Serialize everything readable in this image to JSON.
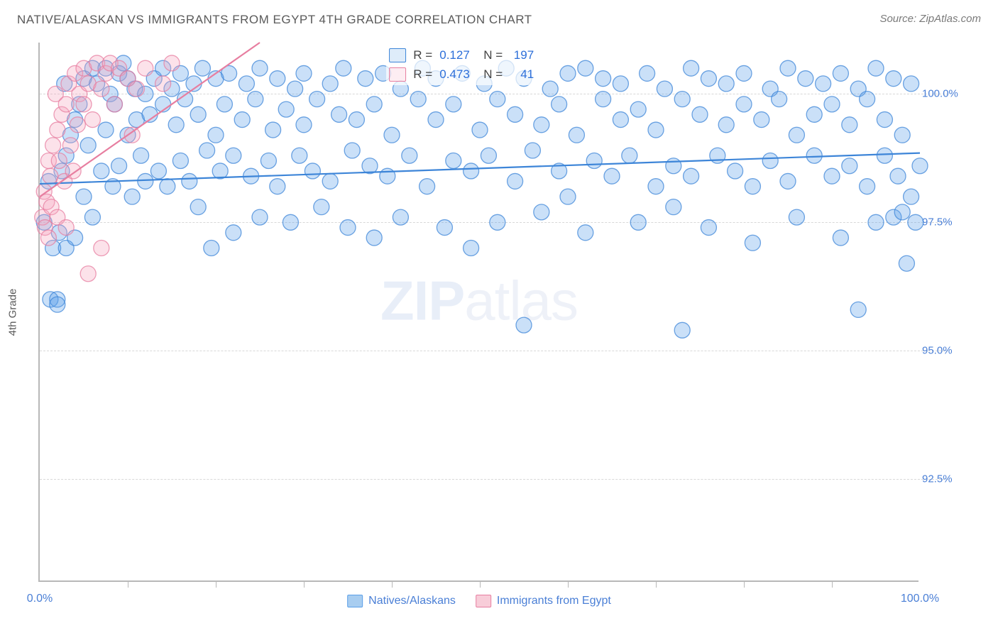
{
  "header": {
    "title": "NATIVE/ALASKAN VS IMMIGRANTS FROM EGYPT 4TH GRADE CORRELATION CHART",
    "source": "Source: ZipAtlas.com"
  },
  "chart": {
    "type": "scatter",
    "ylabel": "4th Grade",
    "watermark_bold": "ZIP",
    "watermark_rest": "atlas",
    "xlim": [
      0,
      100
    ],
    "ylim": [
      90.5,
      101.0
    ],
    "yticks": [
      {
        "v": 92.5,
        "label": "92.5%"
      },
      {
        "v": 95.0,
        "label": "95.0%"
      },
      {
        "v": 97.5,
        "label": "97.5%"
      },
      {
        "v": 100.0,
        "label": "100.0%"
      }
    ],
    "xticks_minor": [
      10,
      20,
      30,
      40,
      50,
      60,
      70,
      80,
      90
    ],
    "xticks_labeled": [
      {
        "v": 0,
        "label": "0.0%"
      },
      {
        "v": 100,
        "label": "100.0%"
      }
    ],
    "marker_radius": 11,
    "marker_fill_opacity": 0.32,
    "marker_stroke_opacity": 0.75,
    "marker_stroke_width": 1.3,
    "line_width": 2.2,
    "grid_color": "#d8d8d8",
    "axis_color": "#b8b8b8",
    "background_color": "#ffffff",
    "text_color_axis": "#4a7fd6",
    "series": [
      {
        "name": "Natives/Alaskans",
        "color": "#5a9fe8",
        "stroke": "#3d85d8",
        "R": "0.127",
        "N": "197",
        "trend": {
          "x1": 0,
          "y1": 98.25,
          "x2": 100,
          "y2": 98.85
        },
        "points": [
          [
            0.5,
            97.5
          ],
          [
            1,
            98.3
          ],
          [
            1.2,
            96.0
          ],
          [
            1.5,
            97.0
          ],
          [
            2,
            96.0
          ],
          [
            2,
            95.9
          ],
          [
            2.2,
            97.3
          ],
          [
            2.5,
            98.5
          ],
          [
            2.8,
            100.2
          ],
          [
            3,
            97.0
          ],
          [
            3,
            98.8
          ],
          [
            3.5,
            99.2
          ],
          [
            4,
            99.5
          ],
          [
            4,
            97.2
          ],
          [
            4.5,
            99.8
          ],
          [
            5,
            100.3
          ],
          [
            5,
            98.0
          ],
          [
            5.5,
            99.0
          ],
          [
            6,
            100.5
          ],
          [
            6,
            97.6
          ],
          [
            6.5,
            100.2
          ],
          [
            7,
            98.5
          ],
          [
            7.5,
            99.3
          ],
          [
            7.5,
            100.5
          ],
          [
            8,
            100.0
          ],
          [
            8.3,
            98.2
          ],
          [
            8.5,
            99.8
          ],
          [
            9,
            100.4
          ],
          [
            9,
            98.6
          ],
          [
            9.5,
            100.6
          ],
          [
            10,
            99.2
          ],
          [
            10,
            100.3
          ],
          [
            10.5,
            98.0
          ],
          [
            10.8,
            100.1
          ],
          [
            11,
            99.5
          ],
          [
            11.5,
            98.8
          ],
          [
            12,
            100.0
          ],
          [
            12,
            98.3
          ],
          [
            12.5,
            99.6
          ],
          [
            13,
            100.3
          ],
          [
            13.5,
            98.5
          ],
          [
            14,
            99.8
          ],
          [
            14,
            100.5
          ],
          [
            14.5,
            98.2
          ],
          [
            15,
            100.1
          ],
          [
            15.5,
            99.4
          ],
          [
            16,
            98.7
          ],
          [
            16,
            100.4
          ],
          [
            16.5,
            99.9
          ],
          [
            17,
            98.3
          ],
          [
            17.5,
            100.2
          ],
          [
            18,
            97.8
          ],
          [
            18,
            99.6
          ],
          [
            18.5,
            100.5
          ],
          [
            19,
            98.9
          ],
          [
            19.5,
            97.0
          ],
          [
            20,
            100.3
          ],
          [
            20,
            99.2
          ],
          [
            20.5,
            98.5
          ],
          [
            21,
            99.8
          ],
          [
            21.5,
            100.4
          ],
          [
            22,
            97.3
          ],
          [
            22,
            98.8
          ],
          [
            23,
            99.5
          ],
          [
            23.5,
            100.2
          ],
          [
            24,
            98.4
          ],
          [
            24.5,
            99.9
          ],
          [
            25,
            97.6
          ],
          [
            25,
            100.5
          ],
          [
            26,
            98.7
          ],
          [
            26.5,
            99.3
          ],
          [
            27,
            100.3
          ],
          [
            27,
            98.2
          ],
          [
            28,
            99.7
          ],
          [
            28.5,
            97.5
          ],
          [
            29,
            100.1
          ],
          [
            29.5,
            98.8
          ],
          [
            30,
            99.4
          ],
          [
            30,
            100.4
          ],
          [
            31,
            98.5
          ],
          [
            31.5,
            99.9
          ],
          [
            32,
            97.8
          ],
          [
            33,
            100.2
          ],
          [
            33,
            98.3
          ],
          [
            34,
            99.6
          ],
          [
            34.5,
            100.5
          ],
          [
            35,
            97.4
          ],
          [
            35.5,
            98.9
          ],
          [
            36,
            99.5
          ],
          [
            37,
            100.3
          ],
          [
            37.5,
            98.6
          ],
          [
            38,
            97.2
          ],
          [
            38,
            99.8
          ],
          [
            39,
            100.4
          ],
          [
            39.5,
            98.4
          ],
          [
            40,
            99.2
          ],
          [
            41,
            100.1
          ],
          [
            41,
            97.6
          ],
          [
            42,
            98.8
          ],
          [
            43,
            99.9
          ],
          [
            43.5,
            100.5
          ],
          [
            44,
            98.2
          ],
          [
            45,
            99.5
          ],
          [
            45,
            100.3
          ],
          [
            46,
            97.4
          ],
          [
            47,
            98.7
          ],
          [
            47,
            99.8
          ],
          [
            48,
            100.4
          ],
          [
            49,
            97.0
          ],
          [
            49,
            98.5
          ],
          [
            50,
            99.3
          ],
          [
            50.5,
            100.2
          ],
          [
            51,
            98.8
          ],
          [
            52,
            97.5
          ],
          [
            52,
            99.9
          ],
          [
            53,
            100.5
          ],
          [
            54,
            98.3
          ],
          [
            54,
            99.6
          ],
          [
            55,
            95.5
          ],
          [
            55,
            100.3
          ],
          [
            56,
            98.9
          ],
          [
            57,
            97.7
          ],
          [
            57,
            99.4
          ],
          [
            58,
            100.1
          ],
          [
            59,
            98.5
          ],
          [
            59,
            99.8
          ],
          [
            60,
            100.4
          ],
          [
            60,
            98.0
          ],
          [
            61,
            99.2
          ],
          [
            62,
            97.3
          ],
          [
            62,
            100.5
          ],
          [
            63,
            98.7
          ],
          [
            64,
            99.9
          ],
          [
            64,
            100.3
          ],
          [
            65,
            98.4
          ],
          [
            66,
            99.5
          ],
          [
            66,
            100.2
          ],
          [
            67,
            98.8
          ],
          [
            68,
            97.5
          ],
          [
            68,
            99.7
          ],
          [
            69,
            100.4
          ],
          [
            70,
            98.2
          ],
          [
            70,
            99.3
          ],
          [
            71,
            100.1
          ],
          [
            72,
            97.8
          ],
          [
            72,
            98.6
          ],
          [
            73,
            99.9
          ],
          [
            73,
            95.4
          ],
          [
            74,
            100.5
          ],
          [
            74,
            98.4
          ],
          [
            75,
            99.6
          ],
          [
            76,
            100.3
          ],
          [
            76,
            97.4
          ],
          [
            77,
            98.8
          ],
          [
            78,
            99.4
          ],
          [
            78,
            100.2
          ],
          [
            79,
            98.5
          ],
          [
            80,
            99.8
          ],
          [
            80,
            100.4
          ],
          [
            81,
            97.1
          ],
          [
            81,
            98.2
          ],
          [
            82,
            99.5
          ],
          [
            83,
            100.1
          ],
          [
            83,
            98.7
          ],
          [
            84,
            99.9
          ],
          [
            85,
            100.5
          ],
          [
            85,
            98.3
          ],
          [
            86,
            97.6
          ],
          [
            86,
            99.2
          ],
          [
            87,
            100.3
          ],
          [
            88,
            98.8
          ],
          [
            88,
            99.6
          ],
          [
            89,
            100.2
          ],
          [
            90,
            98.4
          ],
          [
            90,
            99.8
          ],
          [
            91,
            100.4
          ],
          [
            91,
            97.2
          ],
          [
            92,
            98.6
          ],
          [
            92,
            99.4
          ],
          [
            93,
            100.1
          ],
          [
            93,
            95.8
          ],
          [
            94,
            98.2
          ],
          [
            94,
            99.9
          ],
          [
            95,
            100.5
          ],
          [
            95,
            97.5
          ],
          [
            96,
            98.8
          ],
          [
            96,
            99.5
          ],
          [
            97,
            100.3
          ],
          [
            97,
            97.6
          ],
          [
            97.5,
            98.4
          ],
          [
            98,
            97.7
          ],
          [
            98,
            99.2
          ],
          [
            98.5,
            96.7
          ],
          [
            99,
            100.2
          ],
          [
            99,
            98.0
          ],
          [
            99.5,
            97.5
          ],
          [
            100,
            98.6
          ]
        ]
      },
      {
        "name": "Immigrants from Egypt",
        "color": "#f5a6bd",
        "stroke": "#e77ea0",
        "R": "0.473",
        "N": "41",
        "trend": {
          "x1": 0,
          "y1": 98.0,
          "x2": 25,
          "y2": 101.0
        },
        "points": [
          [
            0.3,
            97.6
          ],
          [
            0.5,
            98.1
          ],
          [
            0.6,
            97.4
          ],
          [
            0.8,
            97.9
          ],
          [
            1,
            98.7
          ],
          [
            1,
            97.2
          ],
          [
            1.2,
            98.4
          ],
          [
            1.3,
            97.8
          ],
          [
            1.5,
            99.0
          ],
          [
            1.8,
            100.0
          ],
          [
            2,
            97.6
          ],
          [
            2,
            99.3
          ],
          [
            2.2,
            98.7
          ],
          [
            2.5,
            99.6
          ],
          [
            2.8,
            98.3
          ],
          [
            3,
            99.8
          ],
          [
            3,
            97.4
          ],
          [
            3.3,
            100.2
          ],
          [
            3.5,
            99.0
          ],
          [
            3.8,
            98.5
          ],
          [
            4,
            100.4
          ],
          [
            4.3,
            99.4
          ],
          [
            4.5,
            100.0
          ],
          [
            5,
            100.5
          ],
          [
            5,
            99.8
          ],
          [
            5.5,
            100.2
          ],
          [
            5.5,
            96.5
          ],
          [
            6,
            99.5
          ],
          [
            6.5,
            100.6
          ],
          [
            7,
            100.1
          ],
          [
            7,
            97.0
          ],
          [
            7.5,
            100.4
          ],
          [
            8,
            100.6
          ],
          [
            8.5,
            99.8
          ],
          [
            9,
            100.5
          ],
          [
            10,
            100.3
          ],
          [
            10.5,
            99.2
          ],
          [
            11,
            100.1
          ],
          [
            12,
            100.5
          ],
          [
            14,
            100.2
          ],
          [
            15,
            100.6
          ]
        ]
      }
    ],
    "legend_bottom": [
      {
        "label": "Natives/Alaskans",
        "fill": "#a8cdf0",
        "stroke": "#5a9fe8"
      },
      {
        "label": "Immigrants from Egypt",
        "fill": "#f8cdd9",
        "stroke": "#e77ea0"
      }
    ]
  }
}
